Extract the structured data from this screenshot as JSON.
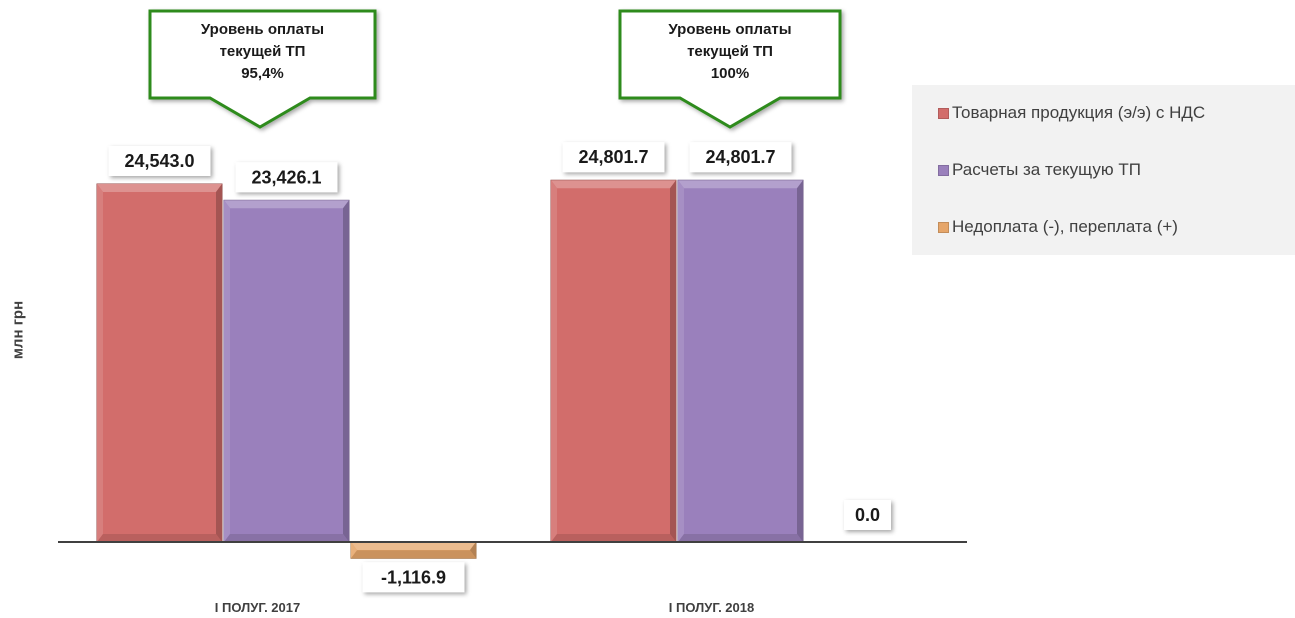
{
  "chart_data": {
    "type": "bar",
    "categories": [
      "I ПОЛУГ. 2017",
      "I ПОЛУГ. 2018"
    ],
    "series": [
      {
        "name": "Товарная продукция (э/э) с НДС",
        "values": [
          24543.0,
          24801.7
        ],
        "labels": [
          "24,543.0",
          "24,801.7"
        ],
        "color": "#d26d6b"
      },
      {
        "name": "Расчеты за текущую ТП",
        "values": [
          23426.1,
          24801.7
        ],
        "labels": [
          "23,426.1",
          "24,801.7"
        ],
        "color": "#9a80bc"
      },
      {
        "name": "Недоплата (-), переплата (+)",
        "values": [
          -1116.9,
          0.0
        ],
        "labels": [
          "-1,116.9",
          "0.0"
        ],
        "color": "#e6a66a"
      }
    ],
    "ylabel": "млн грн",
    "ylim": [
      -2000,
      25000
    ],
    "grid": false,
    "legend": "right",
    "annotations": [
      {
        "category": "I ПОЛУГ. 2017",
        "lines": [
          "Уровень оплаты",
          "текущей ТП",
          "95,4%"
        ]
      },
      {
        "category": "I ПОЛУГ. 2018",
        "lines": [
          "Уровень оплаты",
          "текущей ТП",
          "100%"
        ]
      }
    ]
  }
}
